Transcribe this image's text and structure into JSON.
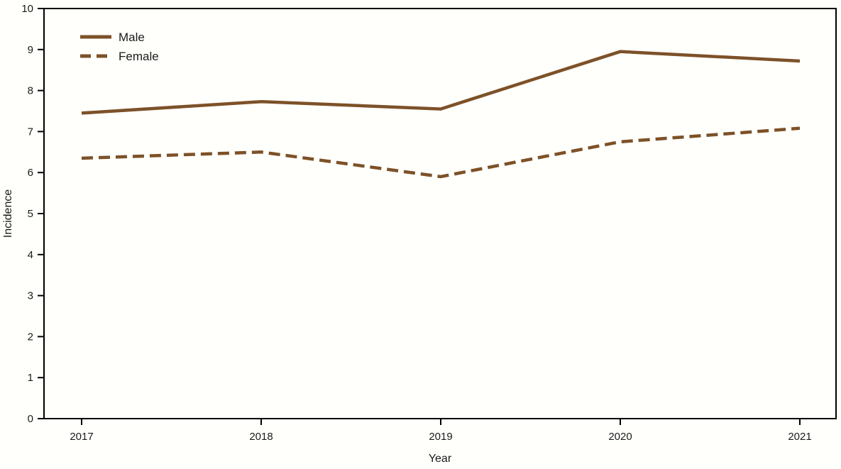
{
  "chart_data": {
    "type": "line",
    "title": "",
    "xlabel": "Year",
    "ylabel": "Incidence",
    "x": [
      "2017",
      "2018",
      "2019",
      "2020",
      "2021"
    ],
    "series": [
      {
        "name": "Male",
        "line_style": "solid",
        "values": [
          7.45,
          7.73,
          7.55,
          8.95,
          8.72
        ]
      },
      {
        "name": "Female",
        "line_style": "dashed",
        "values": [
          6.35,
          6.5,
          5.9,
          6.75,
          7.08
        ]
      }
    ],
    "ylim": [
      0,
      10
    ],
    "yticks": [
      0,
      1,
      2,
      3,
      4,
      5,
      6,
      7,
      8,
      9,
      10
    ],
    "grid": false,
    "legend_position": "top-left-inside",
    "line_color": "#7d5128",
    "axis_color": "#000000",
    "text_color": "#1a1a1a",
    "background_color": "#fffffb"
  }
}
